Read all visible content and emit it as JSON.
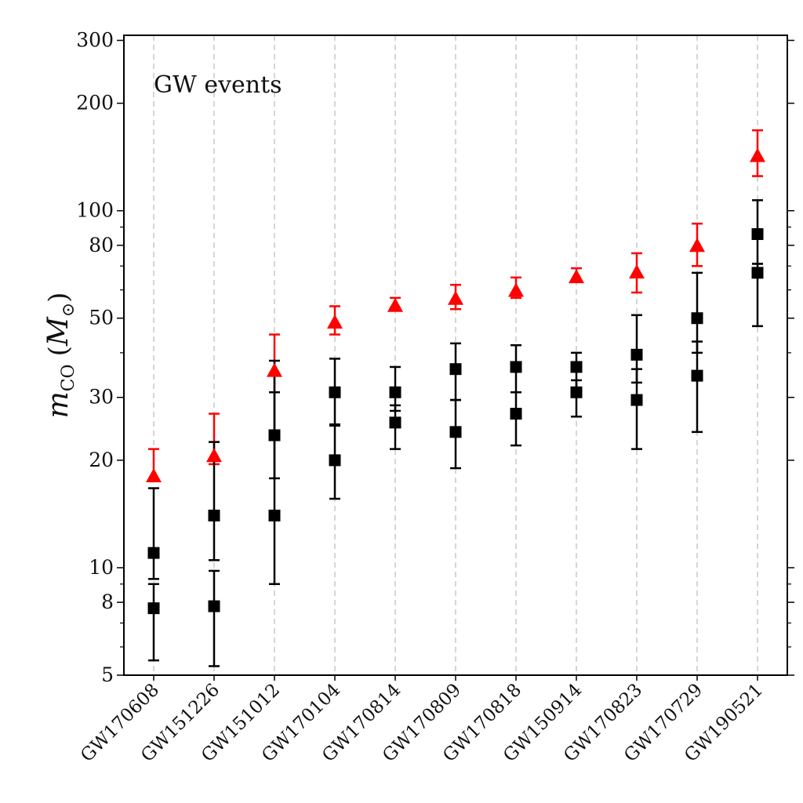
{
  "chart_data": {
    "type": "scatter",
    "title": "",
    "xlabel": "",
    "ylabel": "m_CO (M_⊙)",
    "ylabel_parts": {
      "base": "m",
      "sub": "CO",
      "open": "(",
      "unit": "M",
      "unit_sub": "⊙",
      "close": ")"
    },
    "annotation": "GW events",
    "yscale": "log",
    "ylim": [
      5,
      310
    ],
    "yticks": [
      5,
      8,
      10,
      20,
      30,
      50,
      80,
      100,
      200,
      300
    ],
    "grid": "x-dashed",
    "categories": [
      "GW170608",
      "GW151226",
      "GW151012",
      "GW170104",
      "GW170814",
      "GW170809",
      "GW170818",
      "GW150914",
      "GW170823",
      "GW170729",
      "GW190521"
    ],
    "series": [
      {
        "color": "#ff0000",
        "marker": "triangle",
        "points": [
          {
            "y": 18,
            "lo": 17.5,
            "hi": 21.5
          },
          {
            "y": 20.5,
            "lo": 19.5,
            "hi": 27
          },
          {
            "y": 35.5,
            "lo": 31,
            "hi": 45
          },
          {
            "y": 48.5,
            "lo": 45,
            "hi": 54
          },
          {
            "y": 54,
            "lo": 53.5,
            "hi": 57
          },
          {
            "y": 56.5,
            "lo": 53,
            "hi": 62
          },
          {
            "y": 59.5,
            "lo": 57,
            "hi": 65
          },
          {
            "y": 65,
            "lo": 63.5,
            "hi": 69
          },
          {
            "y": 67,
            "lo": 59,
            "hi": 76
          },
          {
            "y": 79.5,
            "lo": 70,
            "hi": 92
          },
          {
            "y": 142,
            "lo": 125,
            "hi": 168
          }
        ]
      },
      {
        "color": "#000000",
        "marker": "square",
        "points": [
          {
            "y": 11,
            "lo": 9.3,
            "hi": 16.7
          },
          {
            "y": 14,
            "lo": 10.5,
            "hi": 22.5
          },
          {
            "y": 23.5,
            "lo": 17.8,
            "hi": 38
          },
          {
            "y": 31,
            "lo": 25.2,
            "hi": 38.5
          },
          {
            "y": 31,
            "lo": 27.5,
            "hi": 36.5
          },
          {
            "y": 36,
            "lo": 29.5,
            "hi": 42.5
          },
          {
            "y": 36.5,
            "lo": 31,
            "hi": 42
          },
          {
            "y": 36.5,
            "lo": 31.5,
            "hi": 40
          },
          {
            "y": 39.5,
            "lo": 33,
            "hi": 51
          },
          {
            "y": 50,
            "lo": 40,
            "hi": 67
          },
          {
            "y": 86,
            "lo": 71,
            "hi": 107
          }
        ]
      },
      {
        "color": "#000000",
        "marker": "square",
        "points": [
          {
            "y": 7.7,
            "lo": 5.5,
            "hi": 9
          },
          {
            "y": 7.8,
            "lo": 5.3,
            "hi": 9.8
          },
          {
            "y": 14,
            "lo": 9,
            "hi": 31
          },
          {
            "y": 20,
            "lo": 15.6,
            "hi": 25
          },
          {
            "y": 25.5,
            "lo": 21.5,
            "hi": 28.5
          },
          {
            "y": 24,
            "lo": 19,
            "hi": 29.5
          },
          {
            "y": 27,
            "lo": 22,
            "hi": 31
          },
          {
            "y": 31,
            "lo": 26.5,
            "hi": 33.5
          },
          {
            "y": 29.5,
            "lo": 21.5,
            "hi": 36
          },
          {
            "y": 34.5,
            "lo": 24,
            "hi": 43
          },
          {
            "y": 67,
            "lo": 47.5,
            "hi": 71
          }
        ]
      }
    ]
  }
}
